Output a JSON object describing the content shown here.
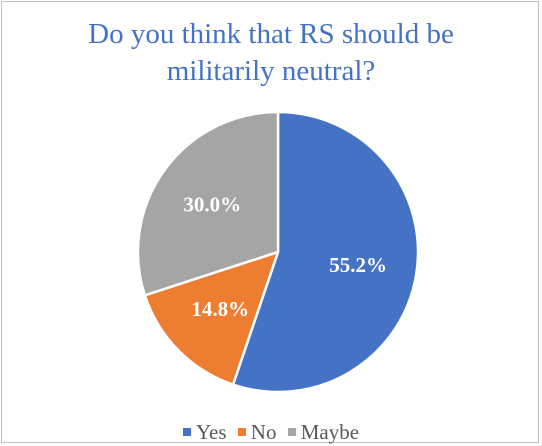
{
  "chart_data": {
    "type": "pie",
    "title_lines": [
      "Do you think that RS should be",
      "militarily neutral?"
    ],
    "categories": [
      "Yes",
      "No",
      "Maybe"
    ],
    "values": [
      55.2,
      14.8,
      30.0
    ],
    "labels": [
      "55.2%",
      "14.8%",
      "30.0%"
    ],
    "colors": [
      "#4472c4",
      "#ed7d31",
      "#a5a5a5"
    ],
    "legend_position": "bottom",
    "start_angle_deg": 0,
    "direction": "clockwise"
  }
}
